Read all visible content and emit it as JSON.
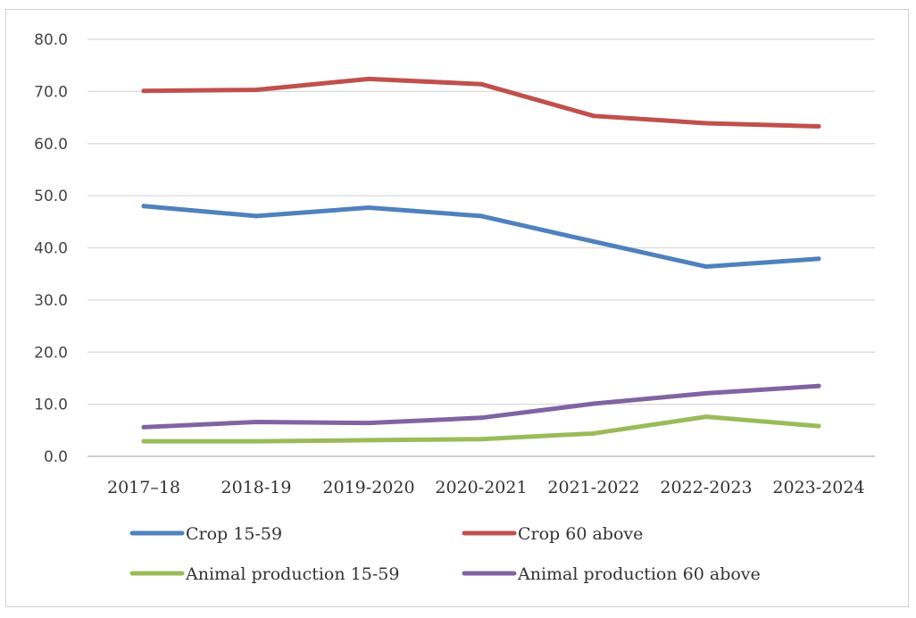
{
  "chart_data": {
    "type": "line",
    "categories": [
      "2017–18",
      "2018-19",
      "2019-2020",
      "2020-2021",
      "2021-2022",
      "2022-2023",
      "2023-2024"
    ],
    "series": [
      {
        "name": "Crop 15-59",
        "color": "#4F81BD",
        "values": [
          48.0,
          46.1,
          47.7,
          46.1,
          41.2,
          36.4,
          37.9
        ]
      },
      {
        "name": "Crop 60 above",
        "color": "#C0504D",
        "values": [
          70.1,
          70.3,
          72.4,
          71.4,
          65.3,
          63.9,
          63.3
        ]
      },
      {
        "name": "Animal production 15-59",
        "color": "#9BBB59",
        "values": [
          2.9,
          2.9,
          3.1,
          3.3,
          4.4,
          7.6,
          5.8
        ]
      },
      {
        "name": "Animal production 60 above",
        "color": "#8064A2",
        "values": [
          5.6,
          6.6,
          6.4,
          7.4,
          10.1,
          12.1,
          13.5
        ]
      }
    ],
    "ylim": [
      0,
      80
    ],
    "yticks": [
      "0.0",
      "10.0",
      "20.0",
      "30.0",
      "40.0",
      "50.0",
      "60.0",
      "70.0",
      "80.0"
    ],
    "grid": true,
    "legend_position": "bottom",
    "title": "",
    "xlabel": "",
    "ylabel": ""
  }
}
